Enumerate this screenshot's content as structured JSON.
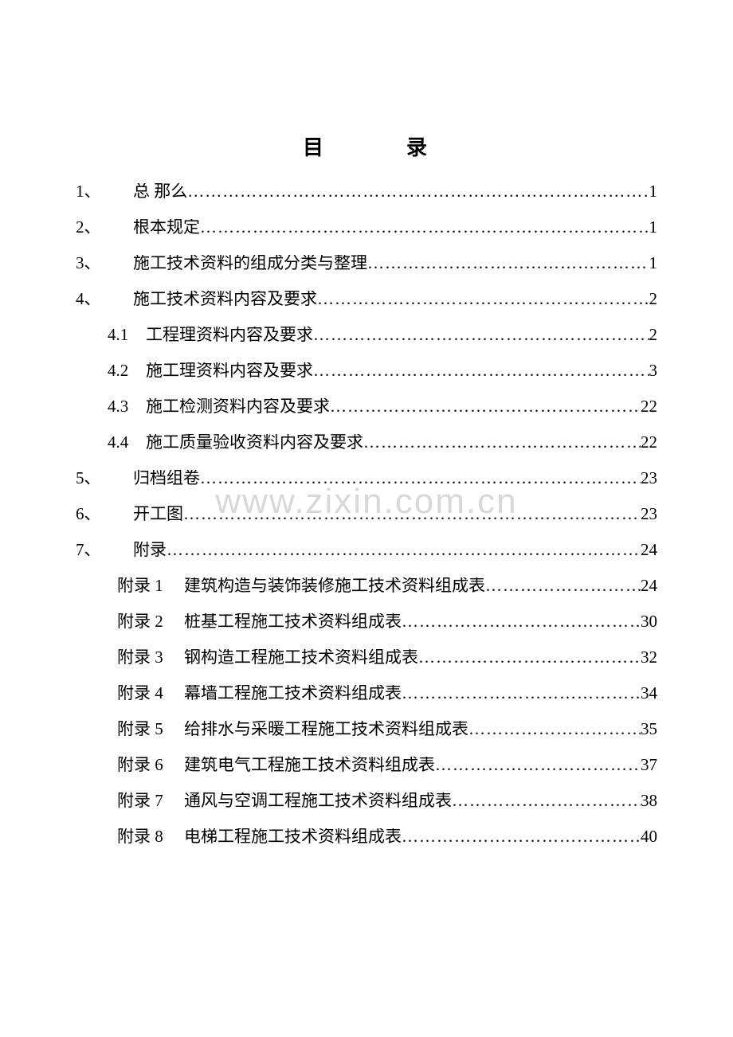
{
  "title_left": "目",
  "title_right": "录",
  "watermark": "www.zixin.com.cn",
  "dots_char": "…",
  "entries": [
    {
      "indent": 0,
      "num": "1、",
      "label": "总 那么",
      "page": "1"
    },
    {
      "indent": 0,
      "num": "2、",
      "label": "根本规定",
      "page": "1"
    },
    {
      "indent": 0,
      "num": "3、",
      "label": "施工技术资料的组成分类与整理",
      "page": "1"
    },
    {
      "indent": 0,
      "num": "4、",
      "label": "施工技术资料内容及要求",
      "page": "2"
    },
    {
      "indent": 1,
      "num": "4.1",
      "label": "工程理资料内容及要求",
      "page": "2"
    },
    {
      "indent": 1,
      "num": "4.2",
      "label": "施工理资料内容及要求",
      "page": "3"
    },
    {
      "indent": 1,
      "num": "4.3",
      "label": "施工检测资料内容及要求",
      "page": "22"
    },
    {
      "indent": 1,
      "num": "4.4",
      "label": "施工质量验收资料内容及要求",
      "page": "22"
    },
    {
      "indent": 0,
      "num": "5、",
      "label": "归档组卷",
      "page": "23"
    },
    {
      "indent": 0,
      "num": "6、",
      "label": "开工图",
      "page": "23"
    },
    {
      "indent": 0,
      "num": "7、",
      "label": "附录",
      "page": "24"
    },
    {
      "indent": 2,
      "num": "附录 1",
      "label": "建筑构造与装饰装修施工技术资料组成表",
      "page": "24"
    },
    {
      "indent": 2,
      "num": "附录 2",
      "label": "桩基工程施工技术资料组成表",
      "page": "30"
    },
    {
      "indent": 2,
      "num": "附录 3",
      "label": "钢构造工程施工技术资料组成表",
      "page": "32"
    },
    {
      "indent": 2,
      "num": "附录 4",
      "label": "幕墙工程施工技术资料组成表",
      "page": "34"
    },
    {
      "indent": 2,
      "num": "附录 5",
      "label": "给排水与采暖工程施工技术资料组成表",
      "page": "35"
    },
    {
      "indent": 2,
      "num": "附录 6",
      "label": "建筑电气工程施工技术资料组成表",
      "page": "37"
    },
    {
      "indent": 2,
      "num": "附录 7",
      "label": "通风与空调工程施工技术资料组成表",
      "page": "38"
    },
    {
      "indent": 2,
      "num": "附录 8",
      "label": "电梯工程施工技术资料组成表",
      "page": "40"
    }
  ]
}
